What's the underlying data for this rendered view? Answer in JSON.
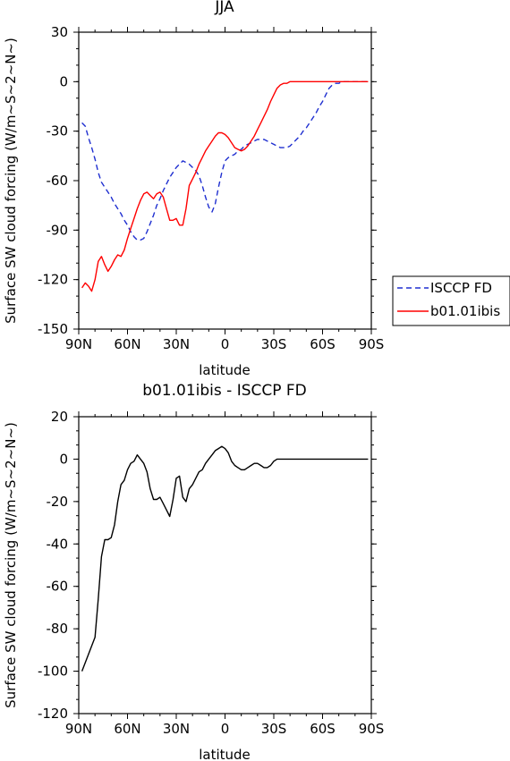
{
  "chart_data": [
    {
      "type": "line",
      "title": "JJA",
      "xlabel": "latitude",
      "ylabel": "Surface SW cloud forcing (W/m~S~2~N~)",
      "x_ticks": [
        {
          "value": -90,
          "label": "90N"
        },
        {
          "value": -60,
          "label": "60N"
        },
        {
          "value": -30,
          "label": "30N"
        },
        {
          "value": 0,
          "label": "0"
        },
        {
          "value": 30,
          "label": "30S"
        },
        {
          "value": 60,
          "label": "60S"
        },
        {
          "value": 90,
          "label": "90S"
        }
      ],
      "y_ticks": [
        {
          "value": 30,
          "label": "30"
        },
        {
          "value": 0,
          "label": "0"
        },
        {
          "value": -30,
          "label": "-30"
        },
        {
          "value": -60,
          "label": "-60"
        },
        {
          "value": -90,
          "label": "-90"
        },
        {
          "value": -120,
          "label": "-120"
        },
        {
          "value": -150,
          "label": "-150"
        }
      ],
      "xlim": [
        -90,
        90
      ],
      "ylim": [
        -150,
        30
      ],
      "legend_position": "outside-right",
      "series": [
        {
          "name": "ISCCP FD",
          "color": "#1f2fd0",
          "dash": true,
          "x": [
            -88,
            -86,
            -84,
            -82,
            -80,
            -78,
            -76,
            -74,
            -72,
            -70,
            -68,
            -66,
            -64,
            -62,
            -60,
            -58,
            -56,
            -54,
            -52,
            -50,
            -48,
            -46,
            -44,
            -42,
            -40,
            -38,
            -36,
            -34,
            -32,
            -30,
            -28,
            -26,
            -24,
            -22,
            -20,
            -18,
            -16,
            -14,
            -12,
            -10,
            -8,
            -6,
            -4,
            -2,
            0,
            2,
            4,
            6,
            8,
            10,
            12,
            14,
            16,
            18,
            20,
            22,
            24,
            26,
            28,
            30,
            32,
            34,
            36,
            38,
            40,
            42,
            44,
            46,
            48,
            50,
            52,
            54,
            56,
            58,
            60,
            62,
            64,
            66,
            68,
            70,
            72,
            74,
            76,
            78,
            80,
            82,
            84,
            86,
            88
          ],
          "values": [
            -25,
            -27,
            -34,
            -40,
            -47,
            -55,
            -61,
            -64,
            -67,
            -70,
            -74,
            -77,
            -80,
            -84,
            -87,
            -91,
            -94,
            -96,
            -96,
            -95,
            -91,
            -86,
            -81,
            -75,
            -71,
            -66,
            -62,
            -58,
            -55,
            -52,
            -50,
            -48,
            -49,
            -50,
            -52,
            -54,
            -57,
            -63,
            -70,
            -76,
            -79,
            -74,
            -64,
            -55,
            -48,
            -46,
            -45,
            -44,
            -42,
            -41,
            -39,
            -38,
            -37,
            -36,
            -35,
            -35,
            -35,
            -36,
            -37,
            -38,
            -39,
            -40,
            -40,
            -40,
            -39,
            -37,
            -35,
            -33,
            -30,
            -28,
            -25,
            -22,
            -19,
            -15,
            -12,
            -8,
            -4,
            -2,
            -1,
            -1,
            0,
            0,
            0,
            0,
            0,
            0,
            0,
            0,
            0
          ]
        },
        {
          "name": "b01.01ibis",
          "color": "#ff0000",
          "dash": false,
          "x": [
            -88,
            -86,
            -84,
            -82,
            -80,
            -78,
            -76,
            -74,
            -72,
            -70,
            -68,
            -66,
            -64,
            -62,
            -60,
            -58,
            -56,
            -54,
            -52,
            -50,
            -48,
            -46,
            -44,
            -42,
            -40,
            -38,
            -36,
            -34,
            -32,
            -30,
            -28,
            -26,
            -24,
            -22,
            -20,
            -18,
            -16,
            -14,
            -12,
            -10,
            -8,
            -6,
            -4,
            -2,
            0,
            2,
            4,
            6,
            8,
            10,
            12,
            14,
            16,
            18,
            20,
            22,
            24,
            26,
            28,
            30,
            32,
            34,
            36,
            38,
            40,
            42,
            44,
            46,
            48,
            50,
            52,
            54,
            56,
            58,
            60,
            62,
            64,
            66,
            68,
            70,
            72,
            74,
            76,
            78,
            80,
            82,
            84,
            86,
            88
          ],
          "values": [
            -125,
            -122,
            -124,
            -127,
            -120,
            -109,
            -106,
            -111,
            -115,
            -112,
            -108,
            -105,
            -106,
            -102,
            -95,
            -89,
            -83,
            -77,
            -72,
            -68,
            -67,
            -69,
            -71,
            -68,
            -67,
            -70,
            -77,
            -84,
            -84,
            -83,
            -87,
            -87,
            -77,
            -63,
            -59,
            -55,
            -50,
            -46,
            -42,
            -39,
            -36,
            -33,
            -31,
            -31,
            -32,
            -34,
            -37,
            -40,
            -41,
            -42,
            -41,
            -39,
            -36,
            -33,
            -29,
            -25,
            -21,
            -17,
            -12,
            -8,
            -4,
            -2,
            -1,
            -1,
            0,
            0,
            0,
            0,
            0,
            0,
            0,
            0,
            0,
            0,
            0,
            0,
            0,
            0,
            0,
            0,
            0,
            0,
            0,
            0,
            0,
            0,
            0,
            0,
            0
          ]
        }
      ]
    },
    {
      "type": "line",
      "title": "b01.01ibis - ISCCP FD",
      "xlabel": "latitude",
      "ylabel": "Surface SW cloud forcing (W/m~S~2~N~)",
      "x_ticks": [
        {
          "value": -90,
          "label": "90N"
        },
        {
          "value": -60,
          "label": "60N"
        },
        {
          "value": -30,
          "label": "30N"
        },
        {
          "value": 0,
          "label": "0"
        },
        {
          "value": 30,
          "label": "30S"
        },
        {
          "value": 60,
          "label": "60S"
        },
        {
          "value": 90,
          "label": "90S"
        }
      ],
      "y_ticks": [
        {
          "value": 20,
          "label": "20"
        },
        {
          "value": 0,
          "label": "0"
        },
        {
          "value": -20,
          "label": "-20"
        },
        {
          "value": -40,
          "label": "-40"
        },
        {
          "value": -60,
          "label": "-60"
        },
        {
          "value": -80,
          "label": "-80"
        },
        {
          "value": -100,
          "label": "-100"
        },
        {
          "value": -120,
          "label": "-120"
        }
      ],
      "xlim": [
        -90,
        90
      ],
      "ylim": [
        -120,
        20
      ],
      "series": [
        {
          "color": "#000000",
          "dash": false,
          "x": [
            -88,
            -84,
            -80,
            -78,
            -76,
            -74,
            -72,
            -70,
            -68,
            -66,
            -64,
            -62,
            -60,
            -58,
            -56,
            -54,
            -52,
            -50,
            -48,
            -46,
            -44,
            -42,
            -40,
            -38,
            -36,
            -34,
            -32,
            -30,
            -28,
            -26,
            -24,
            -22,
            -20,
            -18,
            -16,
            -14,
            -12,
            -10,
            -8,
            -6,
            -4,
            -2,
            0,
            2,
            4,
            6,
            8,
            10,
            12,
            14,
            16,
            18,
            20,
            22,
            24,
            26,
            28,
            30,
            32,
            34,
            36,
            38,
            40,
            42,
            44,
            46,
            48,
            50,
            52,
            54,
            56,
            58,
            60,
            62,
            64,
            66,
            68,
            70,
            72,
            74,
            76,
            78,
            80,
            82,
            84,
            86,
            88
          ],
          "values": [
            -100,
            -92,
            -84,
            -66,
            -46,
            -38,
            -38,
            -37,
            -31,
            -20,
            -12,
            -10,
            -5,
            -2,
            -1,
            2,
            0,
            -2,
            -6,
            -14,
            -19,
            -19,
            -18,
            -21,
            -24,
            -27,
            -19,
            -9,
            -8,
            -18,
            -20,
            -14,
            -12,
            -9,
            -6,
            -5,
            -2,
            0,
            2,
            4,
            5,
            6,
            5,
            3,
            -1,
            -3,
            -4,
            -5,
            -5,
            -4,
            -3,
            -2,
            -2,
            -3,
            -4,
            -4,
            -3,
            -1,
            0,
            0,
            0,
            0,
            0,
            0,
            0,
            0,
            0,
            0,
            0,
            0,
            0,
            0,
            0,
            0,
            0,
            0,
            0,
            0,
            0,
            0,
            0,
            0,
            0,
            0,
            0,
            0,
            0
          ]
        }
      ]
    }
  ]
}
